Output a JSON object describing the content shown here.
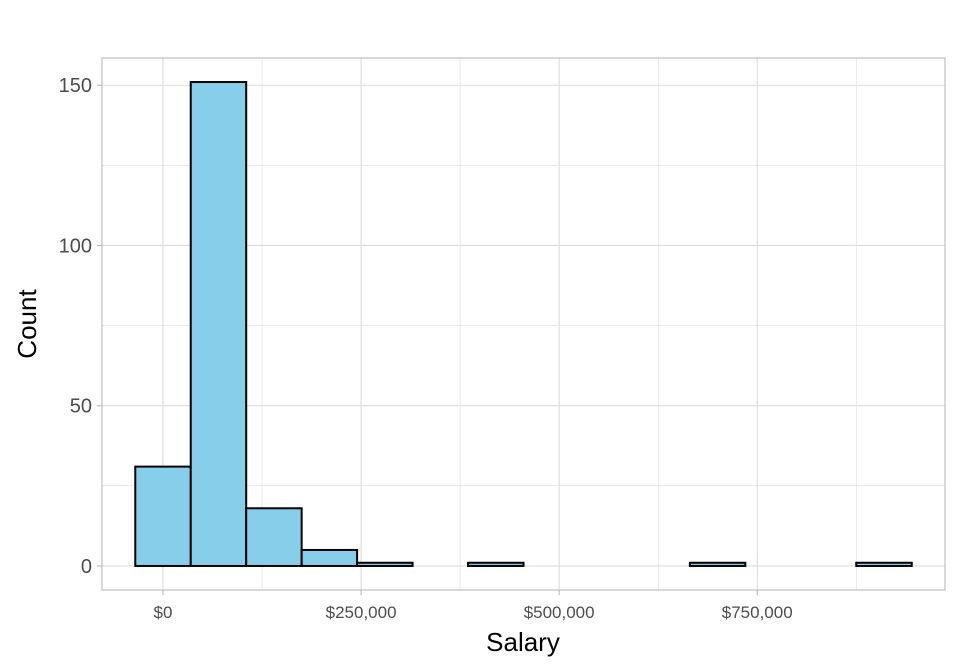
{
  "chart_data": {
    "type": "bar",
    "subtype": "histogram",
    "title": "",
    "xlabel": "Salary",
    "ylabel": "Count",
    "bin_width": 70000,
    "bins": [
      {
        "x_start": -35000,
        "x_end": 35000,
        "count": 31
      },
      {
        "x_start": 35000,
        "x_end": 105000,
        "count": 151
      },
      {
        "x_start": 105000,
        "x_end": 175000,
        "count": 18
      },
      {
        "x_start": 175000,
        "x_end": 245000,
        "count": 5
      },
      {
        "x_start": 245000,
        "x_end": 315000,
        "count": 1
      },
      {
        "x_start": 315000,
        "x_end": 385000,
        "count": 0
      },
      {
        "x_start": 385000,
        "x_end": 455000,
        "count": 1
      },
      {
        "x_start": 455000,
        "x_end": 525000,
        "count": 0
      },
      {
        "x_start": 525000,
        "x_end": 595000,
        "count": 0
      },
      {
        "x_start": 595000,
        "x_end": 665000,
        "count": 0
      },
      {
        "x_start": 665000,
        "x_end": 735000,
        "count": 1
      },
      {
        "x_start": 735000,
        "x_end": 805000,
        "count": 0
      },
      {
        "x_start": 805000,
        "x_end": 875000,
        "count": 0
      },
      {
        "x_start": 875000,
        "x_end": 945000,
        "count": 1
      }
    ],
    "xlim": [
      -77000,
      987000
    ],
    "ylim": [
      -7.5,
      158.5
    ],
    "x_ticks": [
      {
        "value": 0,
        "label": "$0"
      },
      {
        "value": 250000,
        "label": "$250,000"
      },
      {
        "value": 500000,
        "label": "$500,000"
      },
      {
        "value": 750000,
        "label": "$750,000"
      }
    ],
    "x_minor_ticks": [
      125000,
      375000,
      625000,
      875000
    ],
    "y_ticks": [
      {
        "value": 0,
        "label": "0"
      },
      {
        "value": 50,
        "label": "50"
      },
      {
        "value": 100,
        "label": "100"
      },
      {
        "value": 150,
        "label": "150"
      }
    ],
    "y_minor_ticks": [
      25,
      75,
      125
    ],
    "grid": true,
    "legend": "none",
    "colors": {
      "bar_fill": "#87CEEB",
      "bar_stroke": "#000000",
      "grid": "#dcdcdc",
      "panel_border": "#b3b3b3",
      "tick_text": "#4d4d4d"
    }
  }
}
